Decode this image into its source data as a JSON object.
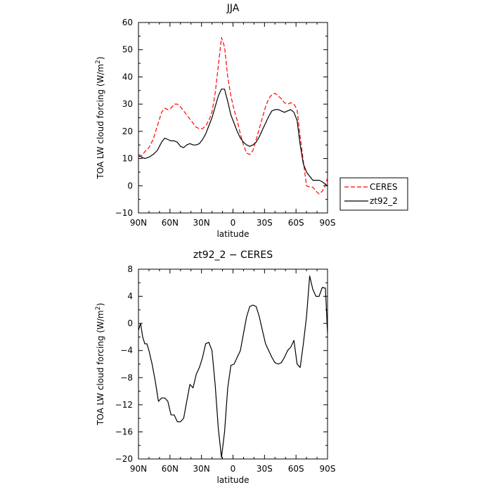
{
  "chart_data": [
    {
      "type": "line",
      "title": "JJA",
      "xlabel": "latitude",
      "ylabel": "TOA LW cloud forcing (W/m",
      "ylabel_sup": "2",
      "ylabel_end": ")",
      "xlim": [
        90,
        -90
      ],
      "ylim": [
        -10,
        60
      ],
      "yticks": [
        -10,
        0,
        10,
        20,
        30,
        40,
        50,
        60
      ],
      "xticks": [
        90,
        60,
        30,
        0,
        -30,
        -60,
        -90
      ],
      "xtick_labels": [
        "90N",
        "60N",
        "30N",
        "0",
        "30S",
        "60S",
        "90S"
      ],
      "legend": {
        "placement": "right",
        "entries": [
          "CERES",
          "zt92_2"
        ]
      },
      "series": [
        {
          "name": "CERES",
          "color": "#ff0000",
          "style": "dashed",
          "x": [
            90,
            87,
            84,
            80,
            76,
            72,
            68,
            65,
            62,
            59,
            56,
            53,
            50,
            47,
            44,
            41,
            38,
            35,
            32,
            29,
            26,
            23,
            20,
            17,
            14,
            11,
            8,
            5,
            2,
            -1,
            -4,
            -7,
            -10,
            -13,
            -16,
            -19,
            -22,
            -25,
            -28,
            -31,
            -34,
            -37,
            -40,
            -43,
            -46,
            -49,
            -52,
            -55,
            -58,
            -61,
            -64,
            -67,
            -70,
            -73,
            -76,
            -79,
            -82,
            -85,
            -88,
            -90
          ],
          "y": [
            11.5,
            11,
            12.5,
            14,
            17,
            22,
            27,
            28.5,
            28,
            28.5,
            30,
            30,
            29,
            27.5,
            26,
            24.5,
            23,
            21.5,
            21,
            21,
            22,
            24,
            27,
            34,
            44,
            54.5,
            51,
            40,
            33,
            28,
            24,
            19,
            15,
            12,
            11.5,
            13,
            17,
            21,
            25,
            29,
            32,
            33.5,
            34,
            33,
            32,
            30.5,
            30,
            30.5,
            30,
            28,
            18,
            9,
            0,
            -0.5,
            -0.5,
            -2,
            -3,
            -2,
            0,
            3
          ]
        },
        {
          "name": "zt92_2",
          "color": "#000000",
          "style": "solid",
          "x": [
            90,
            87,
            84,
            80,
            76,
            72,
            68,
            65,
            62,
            59,
            56,
            53,
            50,
            47,
            44,
            41,
            38,
            35,
            32,
            29,
            26,
            23,
            20,
            17,
            14,
            11,
            8,
            5,
            2,
            -1,
            -4,
            -7,
            -10,
            -13,
            -16,
            -19,
            -22,
            -25,
            -28,
            -31,
            -34,
            -37,
            -40,
            -43,
            -46,
            -49,
            -52,
            -55,
            -58,
            -61,
            -64,
            -67,
            -70,
            -73,
            -76,
            -79,
            -82,
            -85,
            -88,
            -90
          ],
          "y": [
            11,
            10.5,
            10,
            10.5,
            11.5,
            13,
            16,
            17.5,
            17,
            16.5,
            16.5,
            16,
            14.5,
            14,
            15,
            15.5,
            15,
            15,
            15.5,
            17,
            19,
            22,
            25,
            29,
            33,
            35.5,
            35.5,
            31,
            26,
            23,
            20,
            17.5,
            16,
            15,
            14.5,
            15,
            16,
            18,
            20.5,
            23,
            25.5,
            27.5,
            28,
            28,
            27.5,
            27,
            27.5,
            28,
            27,
            24,
            15,
            8,
            5,
            3.5,
            2,
            2,
            2,
            1.5,
            0.5,
            0
          ]
        }
      ]
    },
    {
      "type": "line",
      "title": "zt92_2 − CERES",
      "xlabel": "latitude",
      "ylabel": "TOA LW cloud forcing (W/m",
      "ylabel_sup": "2",
      "ylabel_end": ")",
      "xlim": [
        90,
        -90
      ],
      "ylim": [
        -20,
        8
      ],
      "yticks": [
        -20,
        -16,
        -12,
        -8,
        -4,
        0,
        4,
        8
      ],
      "xticks": [
        90,
        60,
        30,
        0,
        -30,
        -60,
        -90
      ],
      "xtick_labels": [
        "90N",
        "60N",
        "30N",
        "0",
        "30S",
        "60S",
        "90S"
      ],
      "series": [
        {
          "color": "#000000",
          "style": "solid",
          "x": [
            90,
            88,
            86,
            84,
            82,
            80,
            77,
            74,
            71,
            68,
            65,
            62,
            59,
            56,
            53,
            50,
            47,
            44,
            41,
            38,
            35,
            32,
            29,
            26,
            23,
            20,
            17,
            14,
            11,
            8,
            5,
            2,
            -1,
            -4,
            -7,
            -10,
            -13,
            -16,
            -19,
            -22,
            -25,
            -28,
            -31,
            -34,
            -37,
            -40,
            -43,
            -46,
            -49,
            -52,
            -55,
            -58,
            -61,
            -64,
            -67,
            -70,
            -73,
            -76,
            -79,
            -82,
            -85,
            -88,
            -90
          ],
          "y": [
            -1,
            0,
            -2,
            -3,
            -3,
            -4,
            -6,
            -8.5,
            -11.5,
            -11,
            -11,
            -11.5,
            -13.5,
            -13.5,
            -14.5,
            -14.5,
            -14,
            -11.5,
            -9,
            -9.5,
            -7.5,
            -6.5,
            -5,
            -3,
            -2.8,
            -4,
            -9,
            -15.5,
            -19.8,
            -16,
            -9.5,
            -6.2,
            -6,
            -5,
            -4,
            -1.5,
            1,
            2.5,
            2.7,
            2.5,
            1,
            -1,
            -3,
            -4,
            -5,
            -5.8,
            -6,
            -5.8,
            -5,
            -4,
            -3.5,
            -2.5,
            -6,
            -6.5,
            -3,
            1,
            7,
            5,
            4,
            4,
            5.3,
            5.2,
            -1.5
          ]
        }
      ]
    }
  ]
}
